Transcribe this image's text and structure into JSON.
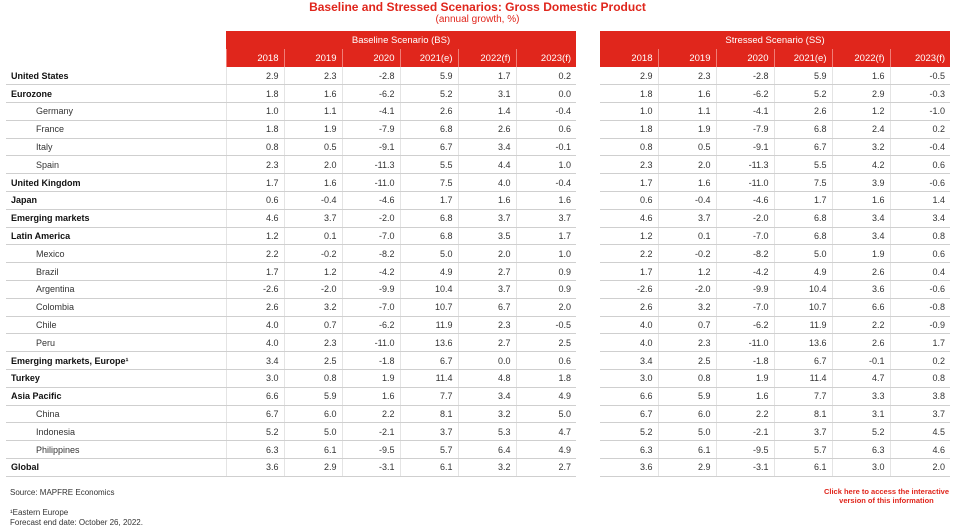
{
  "title": "Baseline and Stressed Scenarios: Gross Domestic Product",
  "subtitle": "(annual growth, %)",
  "baseline_header": "Baseline Scenario (BS)",
  "stressed_header": "Stressed Scenario (SS)",
  "years": [
    "2018",
    "2019",
    "2020",
    "2021(e)",
    "2022(f)",
    "2023(f)"
  ],
  "rows": [
    {
      "label": "United States",
      "sub": false,
      "bs": [
        "2.9",
        "2.3",
        "-2.8",
        "5.9",
        "1.7",
        "0.2"
      ],
      "ss": [
        "2.9",
        "2.3",
        "-2.8",
        "5.9",
        "1.6",
        "-0.5"
      ]
    },
    {
      "label": "Eurozone",
      "sub": false,
      "bs": [
        "1.8",
        "1.6",
        "-6.2",
        "5.2",
        "3.1",
        "0.0"
      ],
      "ss": [
        "1.8",
        "1.6",
        "-6.2",
        "5.2",
        "2.9",
        "-0.3"
      ]
    },
    {
      "label": "Germany",
      "sub": true,
      "bs": [
        "1.0",
        "1.1",
        "-4.1",
        "2.6",
        "1.4",
        "-0.4"
      ],
      "ss": [
        "1.0",
        "1.1",
        "-4.1",
        "2.6",
        "1.2",
        "-1.0"
      ]
    },
    {
      "label": "France",
      "sub": true,
      "bs": [
        "1.8",
        "1.9",
        "-7.9",
        "6.8",
        "2.6",
        "0.6"
      ],
      "ss": [
        "1.8",
        "1.9",
        "-7.9",
        "6.8",
        "2.4",
        "0.2"
      ]
    },
    {
      "label": "Italy",
      "sub": true,
      "bs": [
        "0.8",
        "0.5",
        "-9.1",
        "6.7",
        "3.4",
        "-0.1"
      ],
      "ss": [
        "0.8",
        "0.5",
        "-9.1",
        "6.7",
        "3.2",
        "-0.4"
      ]
    },
    {
      "label": "Spain",
      "sub": true,
      "bs": [
        "2.3",
        "2.0",
        "-11.3",
        "5.5",
        "4.4",
        "1.0"
      ],
      "ss": [
        "2.3",
        "2.0",
        "-11.3",
        "5.5",
        "4.2",
        "0.6"
      ]
    },
    {
      "label": "United Kingdom",
      "sub": false,
      "bs": [
        "1.7",
        "1.6",
        "-11.0",
        "7.5",
        "4.0",
        "-0.4"
      ],
      "ss": [
        "1.7",
        "1.6",
        "-11.0",
        "7.5",
        "3.9",
        "-0.6"
      ]
    },
    {
      "label": "Japan",
      "sub": false,
      "bs": [
        "0.6",
        "-0.4",
        "-4.6",
        "1.7",
        "1.6",
        "1.6"
      ],
      "ss": [
        "0.6",
        "-0.4",
        "-4.6",
        "1.7",
        "1.6",
        "1.4"
      ]
    },
    {
      "label": "Emerging markets",
      "sub": false,
      "bs": [
        "4.6",
        "3.7",
        "-2.0",
        "6.8",
        "3.7",
        "3.7"
      ],
      "ss": [
        "4.6",
        "3.7",
        "-2.0",
        "6.8",
        "3.4",
        "3.4"
      ]
    },
    {
      "label": "Latin America",
      "sub": false,
      "bs": [
        "1.2",
        "0.1",
        "-7.0",
        "6.8",
        "3.5",
        "1.7"
      ],
      "ss": [
        "1.2",
        "0.1",
        "-7.0",
        "6.8",
        "3.4",
        "0.8"
      ]
    },
    {
      "label": "Mexico",
      "sub": true,
      "bs": [
        "2.2",
        "-0.2",
        "-8.2",
        "5.0",
        "2.0",
        "1.0"
      ],
      "ss": [
        "2.2",
        "-0.2",
        "-8.2",
        "5.0",
        "1.9",
        "0.6"
      ]
    },
    {
      "label": "Brazil",
      "sub": true,
      "bs": [
        "1.7",
        "1.2",
        "-4.2",
        "4.9",
        "2.7",
        "0.9"
      ],
      "ss": [
        "1.7",
        "1.2",
        "-4.2",
        "4.9",
        "2.6",
        "0.4"
      ]
    },
    {
      "label": "Argentina",
      "sub": true,
      "bs": [
        "-2.6",
        "-2.0",
        "-9.9",
        "10.4",
        "3.7",
        "0.9"
      ],
      "ss": [
        "-2.6",
        "-2.0",
        "-9.9",
        "10.4",
        "3.6",
        "-0.6"
      ]
    },
    {
      "label": "Colombia",
      "sub": true,
      "bs": [
        "2.6",
        "3.2",
        "-7.0",
        "10.7",
        "6.7",
        "2.0"
      ],
      "ss": [
        "2.6",
        "3.2",
        "-7.0",
        "10.7",
        "6.6",
        "-0.8"
      ]
    },
    {
      "label": "Chile",
      "sub": true,
      "bs": [
        "4.0",
        "0.7",
        "-6.2",
        "11.9",
        "2.3",
        "-0.5"
      ],
      "ss": [
        "4.0",
        "0.7",
        "-6.2",
        "11.9",
        "2.2",
        "-0.9"
      ]
    },
    {
      "label": "Peru",
      "sub": true,
      "bs": [
        "4.0",
        "2.3",
        "-11.0",
        "13.6",
        "2.7",
        "2.5"
      ],
      "ss": [
        "4.0",
        "2.3",
        "-11.0",
        "13.6",
        "2.6",
        "1.7"
      ]
    },
    {
      "label": "Emerging markets, Europe¹",
      "sub": false,
      "bs": [
        "3.4",
        "2.5",
        "-1.8",
        "6.7",
        "0.0",
        "0.6"
      ],
      "ss": [
        "3.4",
        "2.5",
        "-1.8",
        "6.7",
        "-0.1",
        "0.2"
      ]
    },
    {
      "label": "Turkey",
      "sub": false,
      "bs": [
        "3.0",
        "0.8",
        "1.9",
        "11.4",
        "4.8",
        "1.8"
      ],
      "ss": [
        "3.0",
        "0.8",
        "1.9",
        "11.4",
        "4.7",
        "0.8"
      ]
    },
    {
      "label": "Asia Pacific",
      "sub": false,
      "bs": [
        "6.6",
        "5.9",
        "1.6",
        "7.7",
        "3.4",
        "4.9"
      ],
      "ss": [
        "6.6",
        "5.9",
        "1.6",
        "7.7",
        "3.3",
        "3.8"
      ]
    },
    {
      "label": "China",
      "sub": true,
      "bs": [
        "6.7",
        "6.0",
        "2.2",
        "8.1",
        "3.2",
        "5.0"
      ],
      "ss": [
        "6.7",
        "6.0",
        "2.2",
        "8.1",
        "3.1",
        "3.7"
      ]
    },
    {
      "label": "Indonesia",
      "sub": true,
      "bs": [
        "5.2",
        "5.0",
        "-2.1",
        "3.7",
        "5.3",
        "4.7"
      ],
      "ss": [
        "5.2",
        "5.0",
        "-2.1",
        "3.7",
        "5.2",
        "4.5"
      ]
    },
    {
      "label": "Philippines",
      "sub": true,
      "bs": [
        "6.3",
        "6.1",
        "-9.5",
        "5.7",
        "6.4",
        "4.9"
      ],
      "ss": [
        "6.3",
        "6.1",
        "-9.5",
        "5.7",
        "6.3",
        "4.6"
      ]
    },
    {
      "label": "Global",
      "sub": false,
      "bs": [
        "3.6",
        "2.9",
        "-3.1",
        "6.1",
        "3.2",
        "2.7"
      ],
      "ss": [
        "3.6",
        "2.9",
        "-3.1",
        "6.1",
        "3.0",
        "2.0"
      ]
    }
  ],
  "source": "Source: MAPFRE Economics",
  "footnote": "¹Eastern Europe",
  "forecast_date": "Forecast end date: October 26, 2022.",
  "cta_line1": "Click here to access the interactive",
  "cta_line2": "version of this information",
  "colors": {
    "accent": "#e0261c"
  }
}
